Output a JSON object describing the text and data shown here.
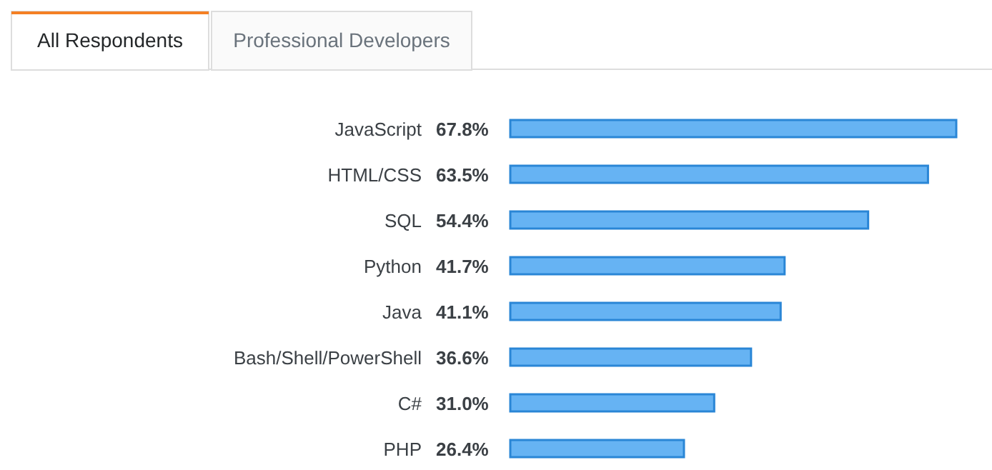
{
  "chart_data": {
    "type": "bar",
    "orientation": "horizontal",
    "categories": [
      "JavaScript",
      "HTML/CSS",
      "SQL",
      "Python",
      "Java",
      "Bash/Shell/PowerShell",
      "C#",
      "PHP"
    ],
    "values": [
      67.8,
      63.5,
      54.4,
      41.7,
      41.1,
      36.6,
      31.0,
      26.4
    ],
    "value_labels": [
      "67.8%",
      "63.5%",
      "54.4%",
      "41.7%",
      "41.1%",
      "36.6%",
      "31.0%",
      "26.4%"
    ],
    "color": "#66b3f3",
    "annotations": [
      "All Respondents",
      "Professional Developers"
    ]
  }
}
